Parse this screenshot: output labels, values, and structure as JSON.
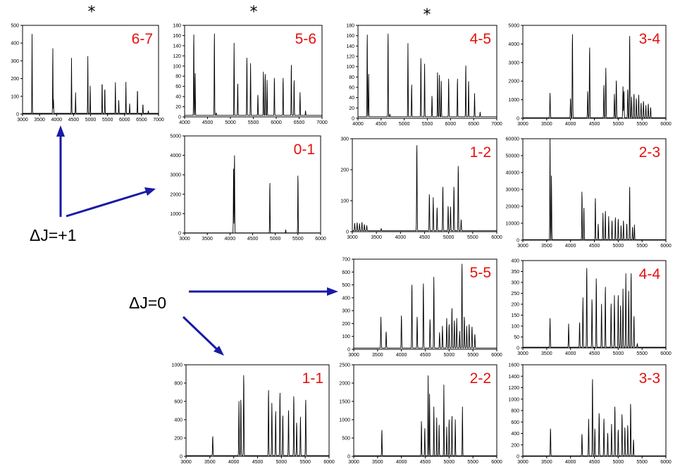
{
  "annotations": {
    "asterisk": "*",
    "delta_j_plus1": "ΔJ=+1",
    "delta_j_zero": "ΔJ=0",
    "arrow_color": "#1a1aa6",
    "label_color": "#e3100d"
  },
  "chart_data": [
    {
      "id": "p67",
      "label": "6-7",
      "type": "line",
      "starred": true,
      "xlim": [
        3000,
        7000
      ],
      "ylim": [
        0,
        500
      ],
      "xticks": [
        3000,
        3500,
        4000,
        4500,
        5000,
        5500,
        6000,
        6500,
        7000
      ],
      "yticks": [
        0,
        100,
        200,
        300,
        400,
        500
      ],
      "baseline": 4,
      "width": 9,
      "peaks": [
        [
          3280,
          450
        ],
        [
          3890,
          385
        ],
        [
          3910,
          85
        ],
        [
          4440,
          315
        ],
        [
          4560,
          120
        ],
        [
          4920,
          325
        ],
        [
          4990,
          165
        ],
        [
          5340,
          195
        ],
        [
          5420,
          160
        ],
        [
          5730,
          185
        ],
        [
          5830,
          80
        ],
        [
          6040,
          180
        ],
        [
          6150,
          60
        ],
        [
          6380,
          150
        ],
        [
          6540,
          60
        ],
        [
          6700,
          20
        ]
      ]
    },
    {
      "id": "p56",
      "label": "5-6",
      "type": "line",
      "starred": true,
      "xlim": [
        4000,
        7000
      ],
      "ylim": [
        0,
        180
      ],
      "xticks": [
        4000,
        4500,
        5000,
        5500,
        6000,
        6500,
        7000
      ],
      "yticks": [
        0,
        20,
        40,
        60,
        80,
        100,
        120,
        140,
        160,
        180
      ],
      "baseline": 3,
      "width": 8,
      "peaks": [
        [
          4200,
          170
        ],
        [
          4230,
          90
        ],
        [
          4650,
          172
        ],
        [
          4690,
          8
        ],
        [
          5080,
          145
        ],
        [
          5160,
          68
        ],
        [
          5360,
          122
        ],
        [
          5440,
          105
        ],
        [
          5600,
          45
        ],
        [
          5720,
          93
        ],
        [
          5760,
          88
        ],
        [
          5800,
          72
        ],
        [
          5960,
          80
        ],
        [
          6150,
          80
        ],
        [
          6330,
          107
        ],
        [
          6390,
          75
        ],
        [
          6520,
          48
        ],
        [
          6640,
          12
        ]
      ]
    },
    {
      "id": "p45",
      "label": "4-5",
      "type": "line",
      "starred": true,
      "xlim": [
        4000,
        7000
      ],
      "ylim": [
        0,
        180
      ],
      "xticks": [
        4000,
        4500,
        5000,
        5500,
        6000,
        6500,
        7000
      ],
      "yticks": [
        0,
        20,
        40,
        60,
        80,
        100,
        120,
        140,
        160,
        180
      ],
      "baseline": 3,
      "width": 8,
      "peaks": [
        [
          4200,
          170
        ],
        [
          4230,
          90
        ],
        [
          4650,
          172
        ],
        [
          4690,
          8
        ],
        [
          5080,
          145
        ],
        [
          5160,
          68
        ],
        [
          5360,
          122
        ],
        [
          5440,
          105
        ],
        [
          5600,
          45
        ],
        [
          5720,
          93
        ],
        [
          5760,
          88
        ],
        [
          5800,
          72
        ],
        [
          5960,
          80
        ],
        [
          6150,
          80
        ],
        [
          6330,
          107
        ],
        [
          6390,
          75
        ],
        [
          6520,
          48
        ],
        [
          6640,
          12
        ]
      ]
    },
    {
      "id": "p34",
      "label": "3-4",
      "type": "line",
      "starred": false,
      "xlim": [
        3000,
        6000
      ],
      "ylim": [
        0,
        5000
      ],
      "xticks": [
        3000,
        3500,
        4000,
        4500,
        5000,
        5500,
        6000
      ],
      "yticks": [
        0,
        1000,
        2000,
        3000,
        4000,
        5000
      ],
      "baseline": 30,
      "width": 9,
      "peaks": [
        [
          3570,
          1350
        ],
        [
          4000,
          1100
        ],
        [
          4040,
          4700
        ],
        [
          4360,
          1500
        ],
        [
          4400,
          3950
        ],
        [
          4700,
          1850
        ],
        [
          4740,
          2700
        ],
        [
          4920,
          1300
        ],
        [
          4960,
          2100
        ],
        [
          5100,
          1700
        ],
        [
          5120,
          1500
        ],
        [
          5200,
          1600
        ],
        [
          5240,
          4600
        ],
        [
          5280,
          1150
        ],
        [
          5330,
          1350
        ],
        [
          5380,
          1100
        ],
        [
          5430,
          1250
        ],
        [
          5480,
          850
        ],
        [
          5530,
          950
        ],
        [
          5580,
          700
        ],
        [
          5630,
          800
        ],
        [
          5680,
          600
        ]
      ]
    },
    {
      "id": "p01",
      "label": "0-1",
      "type": "line",
      "starred": false,
      "xlim": [
        3000,
        6000
      ],
      "ylim": [
        0,
        5000
      ],
      "xticks": [
        3000,
        3500,
        4000,
        4500,
        5000,
        5500,
        6000
      ],
      "yticks": [
        0,
        1000,
        2000,
        3000,
        4000,
        5000
      ],
      "baseline": 10,
      "width": 8,
      "peaks": [
        [
          4080,
          3300
        ],
        [
          4100,
          4200
        ],
        [
          4880,
          2700
        ],
        [
          5230,
          180
        ],
        [
          5500,
          3100
        ]
      ]
    },
    {
      "id": "p12",
      "label": "1-2",
      "type": "line",
      "starred": false,
      "xlim": [
        3000,
        6000
      ],
      "ylim": [
        0,
        300
      ],
      "xticks": [
        3000,
        3500,
        4000,
        4500,
        5000,
        5500,
        6000
      ],
      "yticks": [
        0,
        100,
        200,
        300
      ],
      "baseline": 3,
      "width": 9,
      "peaks": [
        [
          3050,
          28
        ],
        [
          3100,
          30
        ],
        [
          3150,
          26
        ],
        [
          3200,
          31
        ],
        [
          3250,
          24
        ],
        [
          3300,
          20
        ],
        [
          3600,
          10
        ],
        [
          4340,
          290
        ],
        [
          4600,
          125
        ],
        [
          4680,
          110
        ],
        [
          4760,
          80
        ],
        [
          4880,
          150
        ],
        [
          4990,
          85
        ],
        [
          5040,
          80
        ],
        [
          5110,
          150
        ],
        [
          5200,
          220
        ],
        [
          5260,
          40
        ]
      ]
    },
    {
      "id": "p23",
      "label": "2-3",
      "type": "line",
      "starred": false,
      "xlim": [
        3000,
        6000
      ],
      "ylim": [
        0,
        60000
      ],
      "xticks": [
        3000,
        3500,
        4000,
        4500,
        5000,
        5500,
        6000
      ],
      "yticks": [
        0,
        10000,
        20000,
        30000,
        40000,
        50000,
        60000
      ],
      "baseline": 300,
      "width": 8,
      "peaks": [
        [
          3570,
          60000
        ],
        [
          3600,
          38000
        ],
        [
          4240,
          30000
        ],
        [
          4280,
          20000
        ],
        [
          4520,
          26000
        ],
        [
          4580,
          10000
        ],
        [
          4680,
          16000
        ],
        [
          4730,
          18000
        ],
        [
          4800,
          14000
        ],
        [
          4870,
          12000
        ],
        [
          4940,
          14000
        ],
        [
          5000,
          13000
        ],
        [
          5060,
          9000
        ],
        [
          5110,
          12000
        ],
        [
          5180,
          10000
        ],
        [
          5240,
          33000
        ],
        [
          5300,
          8000
        ],
        [
          5340,
          9000
        ]
      ]
    },
    {
      "id": "p55",
      "label": "5-5",
      "type": "line",
      "starred": false,
      "xlim": [
        3000,
        6000
      ],
      "ylim": [
        0,
        700
      ],
      "xticks": [
        3000,
        3500,
        4000,
        4500,
        5000,
        5500,
        6000
      ],
      "yticks": [
        0,
        100,
        200,
        300,
        400,
        500,
        600,
        700
      ],
      "baseline": 10,
      "width": 9,
      "peaks": [
        [
          3570,
          250
        ],
        [
          3680,
          140
        ],
        [
          4000,
          270
        ],
        [
          4220,
          520
        ],
        [
          4330,
          260
        ],
        [
          4460,
          530
        ],
        [
          4600,
          240
        ],
        [
          4680,
          560
        ],
        [
          4800,
          130
        ],
        [
          4860,
          180
        ],
        [
          4950,
          240
        ],
        [
          5000,
          200
        ],
        [
          5060,
          330
        ],
        [
          5110,
          230
        ],
        [
          5160,
          240
        ],
        [
          5220,
          140
        ],
        [
          5270,
          690
        ],
        [
          5320,
          260
        ],
        [
          5370,
          180
        ],
        [
          5420,
          200
        ],
        [
          5480,
          180
        ],
        [
          5540,
          120
        ]
      ]
    },
    {
      "id": "p44",
      "label": "4-4",
      "type": "line",
      "starred": false,
      "xlim": [
        3000,
        6000
      ],
      "ylim": [
        0,
        400
      ],
      "xticks": [
        3000,
        3500,
        4000,
        4500,
        5000,
        5500,
        6000
      ],
      "yticks": [
        0,
        50,
        100,
        150,
        200,
        250,
        300,
        350,
        400
      ],
      "baseline": 3,
      "width": 9,
      "peaks": [
        [
          3570,
          135
        ],
        [
          3960,
          110
        ],
        [
          4190,
          120
        ],
        [
          4260,
          230
        ],
        [
          4340,
          380
        ],
        [
          4450,
          230
        ],
        [
          4540,
          330
        ],
        [
          4650,
          200
        ],
        [
          4730,
          290
        ],
        [
          4850,
          210
        ],
        [
          4920,
          240
        ],
        [
          5000,
          250
        ],
        [
          5050,
          200
        ],
        [
          5100,
          270
        ],
        [
          5160,
          340
        ],
        [
          5220,
          260
        ],
        [
          5270,
          355
        ],
        [
          5330,
          150
        ],
        [
          5400,
          20
        ]
      ]
    },
    {
      "id": "p11",
      "label": "1-1",
      "type": "line",
      "starred": false,
      "xlim": [
        3000,
        6000
      ],
      "ylim": [
        0,
        1000
      ],
      "xticks": [
        3000,
        3500,
        4000,
        4500,
        5000,
        5500,
        6000
      ],
      "yticks": [
        0,
        200,
        400,
        600,
        800,
        1000
      ],
      "baseline": 8,
      "width": 9,
      "peaks": [
        [
          3560,
          225
        ],
        [
          4110,
          600
        ],
        [
          4150,
          640
        ],
        [
          4210,
          920
        ],
        [
          4730,
          750
        ],
        [
          4800,
          580
        ],
        [
          4880,
          510
        ],
        [
          4970,
          720
        ],
        [
          5030,
          460
        ],
        [
          5150,
          520
        ],
        [
          5260,
          680
        ],
        [
          5320,
          380
        ],
        [
          5400,
          430
        ],
        [
          5510,
          640
        ]
      ]
    },
    {
      "id": "p22",
      "label": "2-2",
      "type": "line",
      "starred": false,
      "xlim": [
        3000,
        6000
      ],
      "ylim": [
        0,
        2500
      ],
      "xticks": [
        3000,
        3500,
        4000,
        4500,
        5000,
        5500,
        6000
      ],
      "yticks": [
        0,
        500,
        1000,
        1500,
        2000,
        2500
      ],
      "baseline": 15,
      "width": 8,
      "peaks": [
        [
          3590,
          750
        ],
        [
          4420,
          1000
        ],
        [
          4490,
          800
        ],
        [
          4560,
          2200
        ],
        [
          4590,
          1700
        ],
        [
          4680,
          1350
        ],
        [
          4740,
          1050
        ],
        [
          4790,
          900
        ],
        [
          4890,
          1950
        ],
        [
          4950,
          800
        ],
        [
          5000,
          1050
        ],
        [
          5060,
          1150
        ],
        [
          5130,
          1000
        ],
        [
          5280,
          1350
        ]
      ]
    },
    {
      "id": "p33",
      "label": "3-3",
      "type": "line",
      "starred": false,
      "xlim": [
        3000,
        6000
      ],
      "ylim": [
        0,
        1600
      ],
      "xticks": [
        3000,
        3500,
        4000,
        4500,
        5000,
        5500,
        6000
      ],
      "yticks": [
        0,
        200,
        400,
        600,
        800,
        1000,
        1200,
        1400,
        1600
      ],
      "baseline": 8,
      "width": 9,
      "peaks": [
        [
          3580,
          500
        ],
        [
          4240,
          400
        ],
        [
          4380,
          650
        ],
        [
          4460,
          1400
        ],
        [
          4510,
          500
        ],
        [
          4600,
          780
        ],
        [
          4700,
          680
        ],
        [
          4780,
          420
        ],
        [
          4860,
          560
        ],
        [
          4930,
          900
        ],
        [
          5000,
          480
        ],
        [
          5080,
          760
        ],
        [
          5140,
          520
        ],
        [
          5200,
          560
        ],
        [
          5260,
          950
        ],
        [
          5320,
          300
        ]
      ]
    }
  ]
}
